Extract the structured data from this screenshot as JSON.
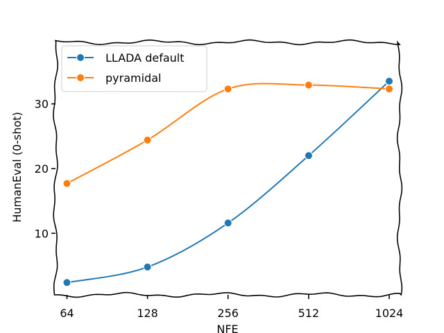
{
  "chart_data": {
    "type": "line",
    "title": "",
    "xlabel": "NFE",
    "ylabel": "HumanEval (0-shot)",
    "x_scale": "log2",
    "x": [
      64,
      128,
      256,
      512,
      1024
    ],
    "xtick_labels": [
      "64",
      "128",
      "256",
      "512",
      "1024"
    ],
    "yticks": [
      10,
      20,
      30
    ],
    "ytick_labels": [
      "10",
      "20",
      "30"
    ],
    "xlim": [
      58,
      1120
    ],
    "ylim": [
      0.5,
      39.5
    ],
    "legend_position": "top-left",
    "series": [
      {
        "name": "LLADA default",
        "color": "#1f77b4",
        "values": [
          2.4,
          4.8,
          11.6,
          22.0,
          33.5
        ]
      },
      {
        "name": "pyramidal",
        "color": "#ff7f0e",
        "values": [
          17.7,
          24.4,
          32.3,
          32.9,
          32.3
        ]
      }
    ]
  }
}
